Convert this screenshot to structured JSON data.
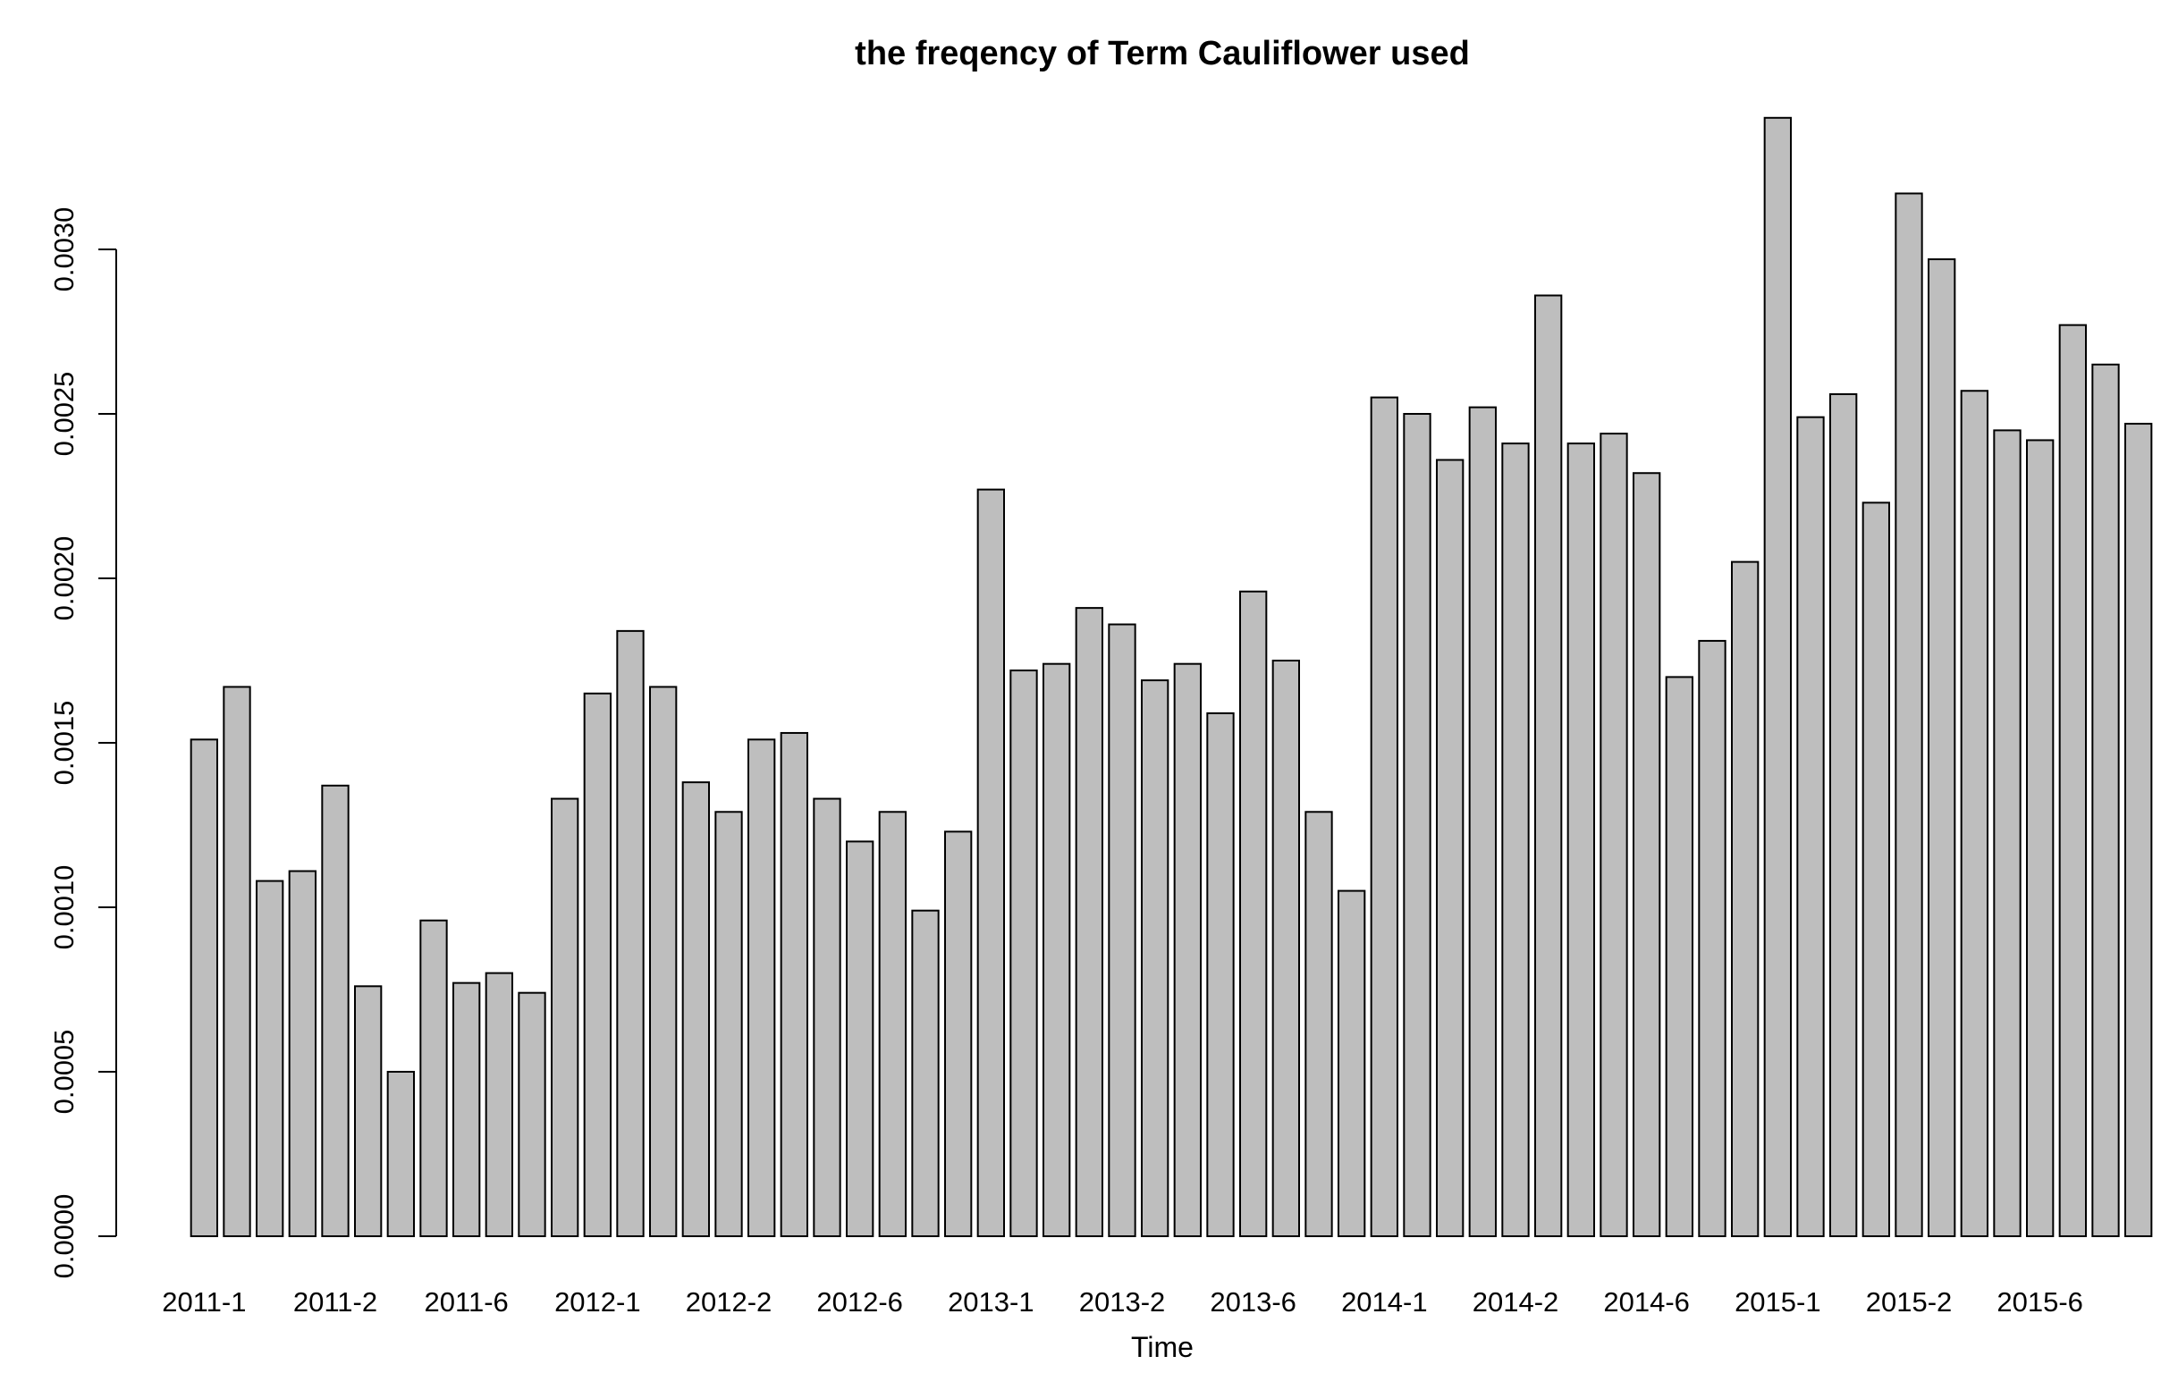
{
  "chart_data": {
    "type": "bar",
    "title": "the freqency of Term Cauliflower used",
    "xlabel": "Time",
    "ylabel": "",
    "ylim": [
      0,
      0.0034
    ],
    "y_ticks": [
      0,
      0.0005,
      0.001,
      0.0015,
      0.002,
      0.0025,
      0.003
    ],
    "y_tick_labels": [
      "0.0000",
      "0.0005",
      "0.0010",
      "0.0015",
      "0.0020",
      "0.0025",
      "0.0030"
    ],
    "x_tick_labels": [
      {
        "index": 0,
        "label": "2011-1"
      },
      {
        "index": 4,
        "label": "2011-2"
      },
      {
        "index": 8,
        "label": "2011-6"
      },
      {
        "index": 12,
        "label": "2012-1"
      },
      {
        "index": 16,
        "label": "2012-2"
      },
      {
        "index": 20,
        "label": "2012-6"
      },
      {
        "index": 24,
        "label": "2013-1"
      },
      {
        "index": 28,
        "label": "2013-2"
      },
      {
        "index": 32,
        "label": "2013-6"
      },
      {
        "index": 36,
        "label": "2014-1"
      },
      {
        "index": 40,
        "label": "2014-2"
      },
      {
        "index": 44,
        "label": "2014-6"
      },
      {
        "index": 48,
        "label": "2015-1"
      },
      {
        "index": 52,
        "label": "2015-2"
      },
      {
        "index": 56,
        "label": "2015-6"
      }
    ],
    "values": [
      0.00151,
      0.00167,
      0.00108,
      0.00111,
      0.00137,
      0.00076,
      0.0005,
      0.00096,
      0.00077,
      0.0008,
      0.00074,
      0.00133,
      0.00165,
      0.00184,
      0.00167,
      0.00138,
      0.00129,
      0.00151,
      0.00153,
      0.00133,
      0.0012,
      0.00129,
      0.00099,
      0.00123,
      0.00227,
      0.00172,
      0.00174,
      0.00191,
      0.00186,
      0.00169,
      0.00174,
      0.00159,
      0.00196,
      0.00175,
      0.00129,
      0.00105,
      0.00255,
      0.0025,
      0.00236,
      0.00252,
      0.00241,
      0.00286,
      0.00241,
      0.00244,
      0.00232,
      0.0017,
      0.00181,
      0.00205,
      0.0034,
      0.00249,
      0.00256,
      0.00223,
      0.00317,
      0.00297,
      0.00257,
      0.00245,
      0.00242,
      0.00277,
      0.00265,
      0.00247
    ],
    "grid": false,
    "legend": "none"
  }
}
